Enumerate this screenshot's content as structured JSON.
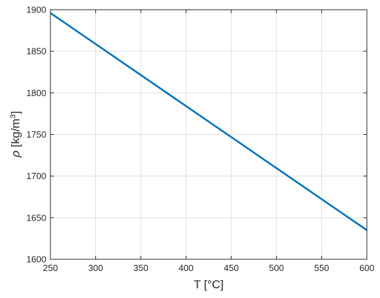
{
  "chart_data": {
    "type": "line",
    "xlabel": "T [°C]",
    "ylabel": {
      "symbol": "ρ",
      "text": " [kg/m",
      "sup": "3",
      "close": "]"
    },
    "xlim": [
      250,
      600
    ],
    "ylim": [
      1600,
      1900
    ],
    "xticks": [
      250,
      300,
      350,
      400,
      450,
      500,
      550,
      600
    ],
    "yticks": [
      1600,
      1650,
      1700,
      1750,
      1800,
      1850,
      1900
    ],
    "grid": true,
    "series": [
      {
        "color": "#0072BD",
        "x": [
          250,
          600
        ],
        "y": [
          1896,
          1635
        ]
      }
    ]
  }
}
